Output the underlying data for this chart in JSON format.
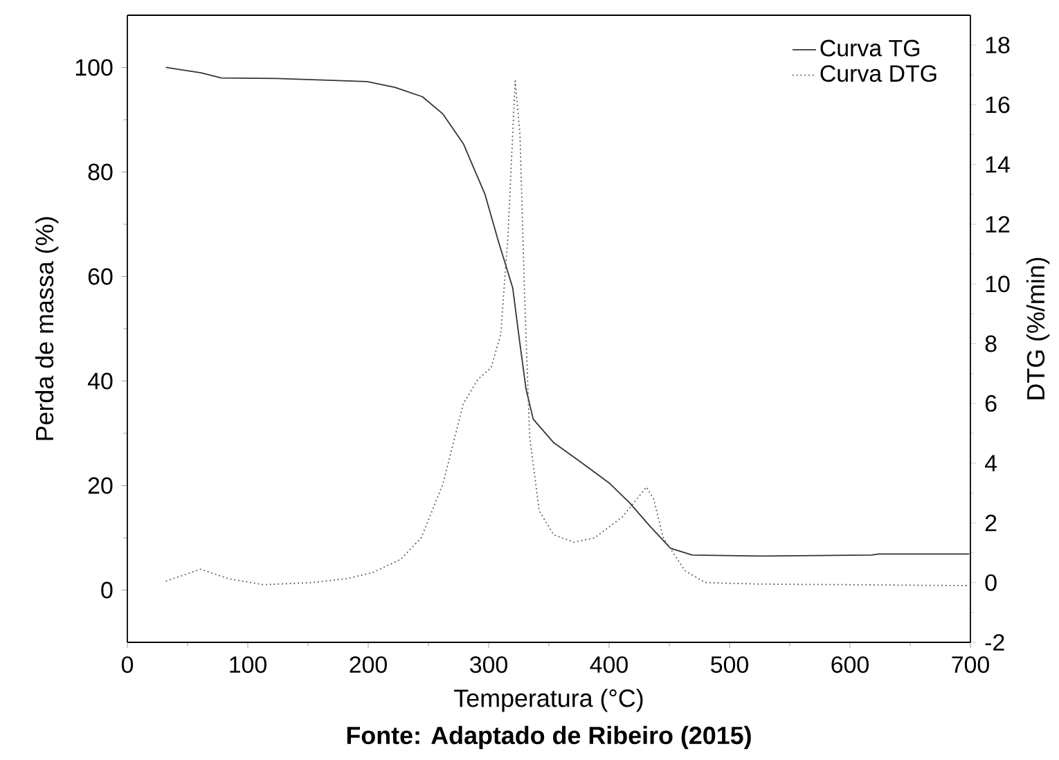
{
  "chart_data": {
    "type": "line",
    "xlabel": "Temperatura (°C)",
    "ylabel": "Perda de massa (%)",
    "y2label": "DTG (%/min)",
    "xlim": [
      0,
      700
    ],
    "xticks": [
      0,
      100,
      200,
      300,
      400,
      500,
      600,
      700
    ],
    "ylim": [
      -10,
      110
    ],
    "yticks": [
      0,
      20,
      40,
      60,
      80,
      100
    ],
    "y2lim": [
      -2,
      19
    ],
    "y2ticks": [
      -2,
      0,
      2,
      4,
      6,
      8,
      10,
      12,
      14,
      16,
      18
    ],
    "legend": "top right",
    "annotations": [
      "**Fonte: Adaptado de Ribeiro (2015)**"
    ],
    "series": [
      {
        "name": "Curva TG",
        "color": "#333333",
        "line_style": "solid",
        "x": [
          32,
          61,
          78,
          124,
          199,
          222,
          245,
          262,
          279,
          297,
          308,
          320,
          325,
          331,
          337,
          354,
          377,
          400,
          417,
          434,
          451,
          469,
          526,
          618,
          624,
          699
        ],
        "values": [
          100,
          99,
          98,
          97.9,
          97.3,
          96.2,
          94.4,
          91.1,
          85.4,
          75.7,
          66.8,
          57.8,
          48.8,
          38.5,
          32.7,
          28.2,
          24.4,
          20.5,
          16.7,
          12.2,
          8,
          6.7,
          6.5,
          6.7,
          6.9,
          6.9
        ]
      },
      {
        "name": "Curva DTG",
        "color": "#555555",
        "line_style": "dotted",
        "axis": "y2",
        "x": [
          32,
          61,
          84,
          113,
          153,
          182,
          204,
          227,
          244,
          262,
          279,
          291,
          302,
          310,
          316,
          322,
          326,
          330,
          334,
          342,
          354,
          371,
          388,
          411,
          423,
          431,
          437,
          445,
          463,
          480,
          526,
          699
        ],
        "values": [
          0.05,
          0.45,
          0.13,
          -0.07,
          0,
          0.13,
          0.34,
          0.78,
          1.5,
          3.3,
          6.0,
          6.8,
          7.2,
          8.3,
          11.6,
          16.8,
          15.0,
          9.4,
          4.9,
          2.4,
          1.6,
          1.35,
          1.5,
          2.2,
          2.8,
          3.2,
          2.8,
          1.5,
          0.4,
          0,
          -0.05,
          -0.1
        ]
      }
    ]
  }
}
